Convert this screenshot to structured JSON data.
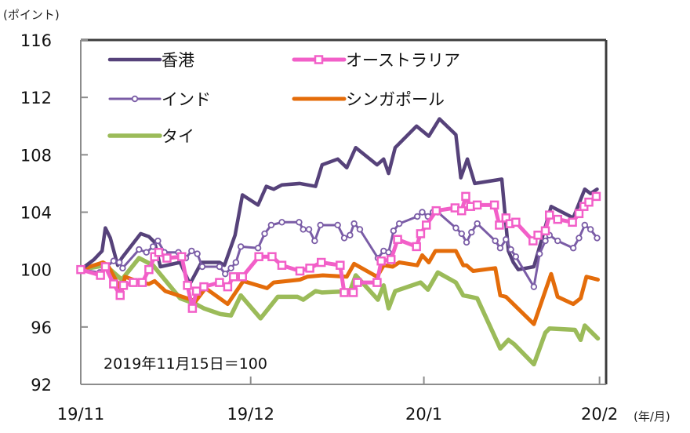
{
  "chart_data": {
    "type": "line",
    "title": "",
    "ylabel": "(ポイント)",
    "xlabel": "(年/月)",
    "annotation": "2019年11月15日＝100",
    "ylim": [
      92,
      116
    ],
    "yticks": [
      92,
      96,
      100,
      104,
      108,
      112,
      116
    ],
    "xlim": [
      0,
      64
    ],
    "x_unit": "trading days since 2019/11/15",
    "xticks": [
      {
        "x": 0,
        "label": "19/11"
      },
      {
        "x": 20.7,
        "label": "19/12"
      },
      {
        "x": 41.8,
        "label": "20/1"
      },
      {
        "x": 63.2,
        "label": "20/2"
      }
    ],
    "grid": false,
    "legend_position": "top-left",
    "series": [
      {
        "name": "香港",
        "color": "#56427a",
        "marker": "none",
        "width": 4.5,
        "points": [
          [
            0,
            100
          ],
          [
            1.6,
            100.7
          ],
          [
            2.6,
            101.3
          ],
          [
            3.0,
            102.9
          ],
          [
            3.6,
            102.2
          ],
          [
            4.5,
            100.3
          ],
          [
            5.0,
            100.8
          ],
          [
            7.3,
            102.5
          ],
          [
            8.3,
            102.3
          ],
          [
            9.0,
            101.9
          ],
          [
            9.7,
            100.2
          ],
          [
            12.1,
            100.5
          ],
          [
            13.3,
            99.0
          ],
          [
            14.7,
            100.5
          ],
          [
            16.9,
            100.5
          ],
          [
            17.5,
            100.3
          ],
          [
            18.8,
            102.4
          ],
          [
            19.7,
            105.2
          ],
          [
            21.6,
            104.5
          ],
          [
            22.6,
            105.8
          ],
          [
            23.5,
            105.6
          ],
          [
            24.5,
            105.9
          ],
          [
            26.7,
            106.0
          ],
          [
            28.6,
            105.8
          ],
          [
            29.4,
            107.3
          ],
          [
            31.3,
            107.7
          ],
          [
            32.4,
            107.1
          ],
          [
            33.5,
            108.5
          ],
          [
            36.1,
            107.3
          ],
          [
            36.9,
            107.7
          ],
          [
            37.5,
            106.7
          ],
          [
            38.3,
            108.5
          ],
          [
            40.9,
            110.0
          ],
          [
            42.4,
            109.3
          ],
          [
            43.7,
            110.5
          ],
          [
            45.7,
            109.4
          ],
          [
            46.3,
            106.4
          ],
          [
            47.1,
            107.7
          ],
          [
            48.0,
            106.0
          ],
          [
            51.3,
            106.3
          ],
          [
            52.1,
            101.3
          ],
          [
            52.7,
            100.5
          ],
          [
            53.3,
            100.0
          ],
          [
            55.2,
            100.2
          ],
          [
            57.3,
            104.4
          ],
          [
            60.0,
            103.6
          ],
          [
            61.4,
            105.6
          ],
          [
            62.1,
            105.3
          ],
          [
            62.9,
            105.6
          ]
        ]
      },
      {
        "name": "オーストラリア",
        "color": "#f25fc8",
        "marker": "square",
        "width": 5,
        "points": [
          [
            0,
            100
          ],
          [
            2.4,
            99.6
          ],
          [
            3.0,
            100.2
          ],
          [
            4.0,
            99.0
          ],
          [
            4.8,
            98.2
          ],
          [
            5.2,
            98.9
          ],
          [
            6.4,
            99.1
          ],
          [
            7.5,
            99.1
          ],
          [
            8.3,
            100
          ],
          [
            9.0,
            100.9
          ],
          [
            9.5,
            101.2
          ],
          [
            10.5,
            100.8
          ],
          [
            12.3,
            100.9
          ],
          [
            13.0,
            98.9
          ],
          [
            13.6,
            97.3
          ],
          [
            14.1,
            98.5
          ],
          [
            15.0,
            98.8
          ],
          [
            16.9,
            99.1
          ],
          [
            17.9,
            98.8
          ],
          [
            18.6,
            99.5
          ],
          [
            19.7,
            99.5
          ],
          [
            21.7,
            100.9
          ],
          [
            23.3,
            100.9
          ],
          [
            24.5,
            100.3
          ],
          [
            26.7,
            99.9
          ],
          [
            27.9,
            100.1
          ],
          [
            29.3,
            100.5
          ],
          [
            31.6,
            100.3
          ],
          [
            32.1,
            98.4
          ],
          [
            33.2,
            98.4
          ],
          [
            33.7,
            99.1
          ],
          [
            36.1,
            99.1
          ],
          [
            36.6,
            100.6
          ],
          [
            37.8,
            100.7
          ],
          [
            38.6,
            102.1
          ],
          [
            40.9,
            101.6
          ],
          [
            41.4,
            102.5
          ],
          [
            42.1,
            103.1
          ],
          [
            43.3,
            104.1
          ],
          [
            45.6,
            104.3
          ],
          [
            46.4,
            104.1
          ],
          [
            46.9,
            105.1
          ],
          [
            47.5,
            104.4
          ],
          [
            48.3,
            104.5
          ],
          [
            50.4,
            104.5
          ],
          [
            51.0,
            103.1
          ],
          [
            51.8,
            103.6
          ],
          [
            52.3,
            103.2
          ],
          [
            53.0,
            103.3
          ],
          [
            55.1,
            102.0
          ],
          [
            55.7,
            102.4
          ],
          [
            56.6,
            102.7
          ],
          [
            57.1,
            103.8
          ],
          [
            58.1,
            103.5
          ],
          [
            59.9,
            103.3
          ],
          [
            60.7,
            103.9
          ],
          [
            61.3,
            104.4
          ],
          [
            61.9,
            104.7
          ],
          [
            62.8,
            105.1
          ]
        ]
      },
      {
        "name": "インド",
        "color": "#7a5ca6",
        "marker": "circle",
        "width": 3,
        "points": [
          [
            0,
            100
          ],
          [
            2.3,
            99.8
          ],
          [
            4.0,
            100.6
          ],
          [
            4.7,
            100.5
          ],
          [
            5.1,
            100.1
          ],
          [
            7.1,
            101.4
          ],
          [
            8.0,
            101.2
          ],
          [
            8.8,
            101.6
          ],
          [
            9.4,
            102.0
          ],
          [
            10.2,
            101.2
          ],
          [
            11.9,
            101.2
          ],
          [
            12.8,
            100.8
          ],
          [
            13.5,
            101.3
          ],
          [
            14.2,
            101.1
          ],
          [
            14.8,
            100.2
          ],
          [
            16.9,
            100.2
          ],
          [
            17.6,
            99.7
          ],
          [
            18.3,
            100.1
          ],
          [
            18.9,
            100.5
          ],
          [
            19.5,
            101.6
          ],
          [
            21.6,
            101.5
          ],
          [
            22.4,
            102.5
          ],
          [
            23.2,
            103.1
          ],
          [
            24.5,
            103.3
          ],
          [
            26.6,
            103.3
          ],
          [
            27.1,
            102.8
          ],
          [
            27.8,
            102.8
          ],
          [
            28.5,
            102.0
          ],
          [
            29.2,
            103.1
          ],
          [
            31.3,
            103.1
          ],
          [
            32.1,
            102.2
          ],
          [
            32.8,
            102.4
          ],
          [
            33.3,
            103.2
          ],
          [
            34.0,
            102.8
          ],
          [
            36.2,
            100.8
          ],
          [
            36.9,
            101.3
          ],
          [
            37.5,
            101.2
          ],
          [
            38.1,
            102.7
          ],
          [
            38.8,
            103.2
          ],
          [
            41.0,
            103.7
          ],
          [
            41.6,
            104.0
          ],
          [
            42.3,
            103.7
          ],
          [
            42.9,
            104.0
          ],
          [
            43.5,
            104.0
          ],
          [
            45.7,
            102.9
          ],
          [
            46.4,
            102.5
          ],
          [
            47.0,
            101.9
          ],
          [
            47.6,
            102.6
          ],
          [
            48.3,
            103.2
          ],
          [
            50.5,
            102.0
          ],
          [
            51.1,
            101.5
          ],
          [
            51.8,
            102.1
          ],
          [
            52.4,
            101.4
          ],
          [
            53.0,
            100.9
          ],
          [
            55.2,
            98.8
          ],
          [
            55.9,
            101.1
          ],
          [
            56.6,
            102.0
          ],
          [
            57.1,
            102.4
          ],
          [
            58.1,
            102.0
          ],
          [
            60.0,
            101.5
          ],
          [
            60.7,
            102.2
          ],
          [
            61.4,
            103.1
          ],
          [
            62.1,
            102.8
          ],
          [
            62.9,
            102.2
          ]
        ]
      },
      {
        "name": "シンガポール",
        "color": "#e46c0a",
        "marker": "none",
        "width": 5,
        "points": [
          [
            0,
            100
          ],
          [
            2.7,
            100.5
          ],
          [
            3.3,
            100.3
          ],
          [
            5.0,
            98.5
          ],
          [
            5.4,
            99.5
          ],
          [
            7.3,
            99.1
          ],
          [
            8.3,
            99.0
          ],
          [
            9.0,
            99.2
          ],
          [
            10.3,
            98.5
          ],
          [
            12.4,
            98.1
          ],
          [
            14.0,
            97.8
          ],
          [
            15.2,
            98.7
          ],
          [
            17.9,
            97.6
          ],
          [
            19.8,
            99.2
          ],
          [
            22.7,
            98.7
          ],
          [
            23.5,
            99.1
          ],
          [
            26.7,
            99.3
          ],
          [
            27.6,
            99.5
          ],
          [
            29.5,
            99.6
          ],
          [
            32.4,
            99.5
          ],
          [
            33.3,
            100.4
          ],
          [
            36.1,
            99.5
          ],
          [
            36.9,
            100.3
          ],
          [
            38.0,
            100.2
          ],
          [
            38.8,
            100.5
          ],
          [
            41.0,
            100.3
          ],
          [
            41.6,
            101.0
          ],
          [
            42.4,
            100.5
          ],
          [
            43.2,
            101.3
          ],
          [
            45.7,
            101.3
          ],
          [
            46.6,
            100.3
          ],
          [
            47.0,
            100.3
          ],
          [
            47.8,
            99.9
          ],
          [
            50.5,
            100.1
          ],
          [
            51.1,
            98.2
          ],
          [
            51.8,
            98.1
          ],
          [
            55.2,
            96.2
          ],
          [
            57.3,
            99.7
          ],
          [
            58.1,
            98.1
          ],
          [
            60.0,
            97.6
          ],
          [
            60.9,
            98.0
          ],
          [
            61.6,
            99.5
          ],
          [
            63.0,
            99.3
          ]
        ]
      },
      {
        "name": "タイ",
        "color": "#9bbb59",
        "marker": "none",
        "width": 5.5,
        "points": [
          [
            0,
            100
          ],
          [
            3.0,
            100.3
          ],
          [
            5.0,
            99.3
          ],
          [
            7.1,
            100.8
          ],
          [
            8.8,
            100.3
          ],
          [
            12.1,
            98.0
          ],
          [
            14.0,
            97.6
          ],
          [
            15.0,
            97.3
          ],
          [
            17.0,
            96.9
          ],
          [
            18.3,
            96.8
          ],
          [
            19.5,
            98.2
          ],
          [
            21.9,
            96.6
          ],
          [
            24.0,
            98.1
          ],
          [
            26.4,
            98.1
          ],
          [
            27.1,
            97.9
          ],
          [
            28.6,
            98.5
          ],
          [
            29.4,
            98.4
          ],
          [
            32.8,
            98.5
          ],
          [
            33.5,
            99.6
          ],
          [
            36.2,
            97.9
          ],
          [
            36.9,
            98.9
          ],
          [
            37.5,
            97.3
          ],
          [
            38.3,
            98.5
          ],
          [
            41.4,
            99.1
          ],
          [
            42.3,
            98.6
          ],
          [
            43.5,
            99.8
          ],
          [
            45.7,
            99.1
          ],
          [
            46.6,
            98.2
          ],
          [
            47.5,
            98.1
          ],
          [
            48.3,
            98.0
          ],
          [
            51.1,
            94.5
          ],
          [
            52.1,
            95.1
          ],
          [
            52.8,
            94.8
          ],
          [
            55.2,
            93.4
          ],
          [
            56.6,
            95.6
          ],
          [
            57.1,
            95.9
          ],
          [
            60.2,
            95.8
          ],
          [
            60.9,
            95.1
          ],
          [
            61.4,
            96.1
          ],
          [
            63.0,
            95.2
          ]
        ]
      }
    ]
  }
}
